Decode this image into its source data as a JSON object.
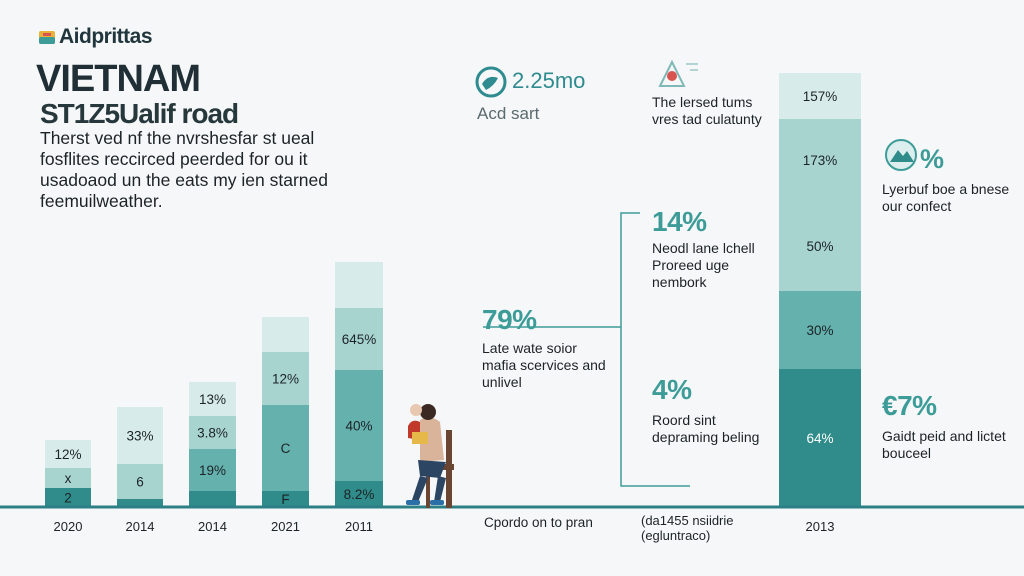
{
  "brand": {
    "name": "Aidprittas"
  },
  "title": "VIETNAM",
  "subtitle": "ST1Z5Ualif road",
  "description": "Therst ved nf the nvrshesfar st ueal fosflites reccirced peerded for ou it usadoaod un the eats my ien starned feemuilweather.",
  "colors": {
    "teal_dark": "#2f8c8a",
    "teal_mid": "#64b1ae",
    "teal_light": "#a8d4d0",
    "teal_pale": "#d7ecea",
    "baseline": "#2d7f86"
  },
  "chart_data": {
    "type": "bar",
    "categories": [
      "2020",
      "2014",
      "2014",
      "2021",
      "2011",
      "2013"
    ],
    "segment_labels": [
      [
        "2",
        "x",
        "12%"
      ],
      [
        "",
        "6",
        "33%"
      ],
      [
        "",
        "19%",
        "3.8%",
        "13%"
      ],
      [
        "F",
        "C",
        "12%"
      ],
      [
        "8.2%",
        "40%",
        "645%"
      ],
      [
        "64%",
        "30%",
        "50%",
        "173%",
        "157%"
      ]
    ],
    "totals": [
      67,
      100,
      125,
      190,
      245,
      434
    ]
  },
  "stats": [
    {
      "value": "2.25mo",
      "label": "Acd sart",
      "icon": "globe-icon"
    },
    {
      "body": "The lersed tums vres tad culatunty",
      "icon": "bell-icon"
    },
    {
      "value": "%",
      "body": "Lyerbuf boe a bnese our confect",
      "icon": "mountain-icon"
    },
    {
      "value": "14%",
      "body": "Neodl lane lchell Proreed uge nembork"
    },
    {
      "value": "79%",
      "body": "Late wate soior mafia scervices and unlivel"
    },
    {
      "value": "4%",
      "body": "Roord sint depraming beling"
    },
    {
      "value": "€7%",
      "body": "Gaidt peid and lictet bouceel"
    }
  ],
  "footer": {
    "label_1": "Cpordo on to pran",
    "label_2": "(da1455 nsiidrie (egluntraco)"
  }
}
